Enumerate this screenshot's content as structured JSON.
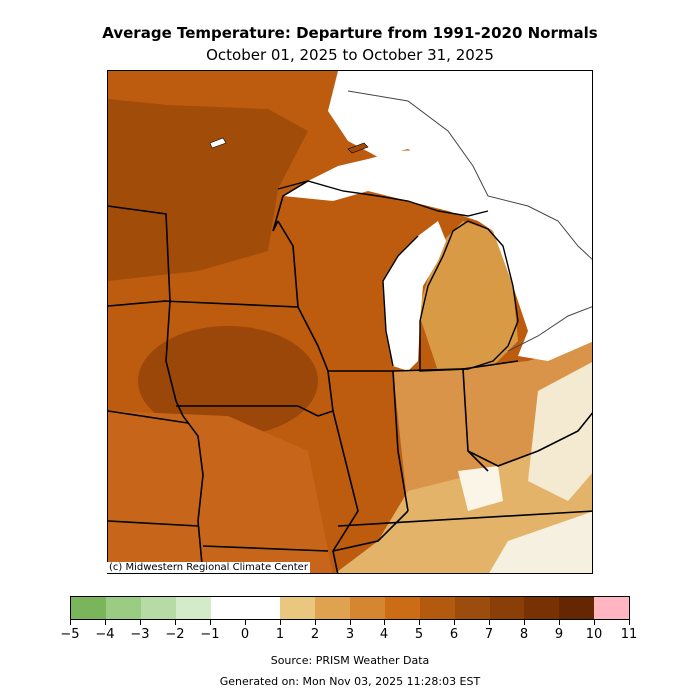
{
  "header": {
    "title": "Average Temperature: Departure from 1991-2020 Normals",
    "subtitle": "October 01, 2025 to October 31, 2025"
  },
  "map": {
    "copyright": "(c) Midwestern Regional Climate Center",
    "lake_color": "#ffffff",
    "region_colors": {
      "deep": "#a24c0a",
      "warm": "#bd5c0f",
      "mid": "#cc6d1a",
      "light": "#d98f3d",
      "pale": "#e3b36a",
      "neutral": "#ffffff"
    }
  },
  "legend": {
    "colors": [
      "#7ab55c",
      "#9bcc84",
      "#b6dba5",
      "#d4ebc9",
      "#ffffff",
      "#ffffff",
      "#e9c77e",
      "#dfa24f",
      "#d5862f",
      "#cc6c15",
      "#b35a0f",
      "#9c4c0c",
      "#8a3f08",
      "#773203",
      "#652602",
      "#ffb6c1"
    ],
    "ticks": [
      "−5",
      "−4",
      "−3",
      "−2",
      "−1",
      "0",
      "1",
      "2",
      "3",
      "4",
      "5",
      "6",
      "7",
      "8",
      "9",
      "10",
      "11"
    ]
  },
  "footer": {
    "source": "Source: PRISM Weather Data",
    "generated": "Generated on: Mon Nov 03, 2025 11:28:03 EST"
  }
}
